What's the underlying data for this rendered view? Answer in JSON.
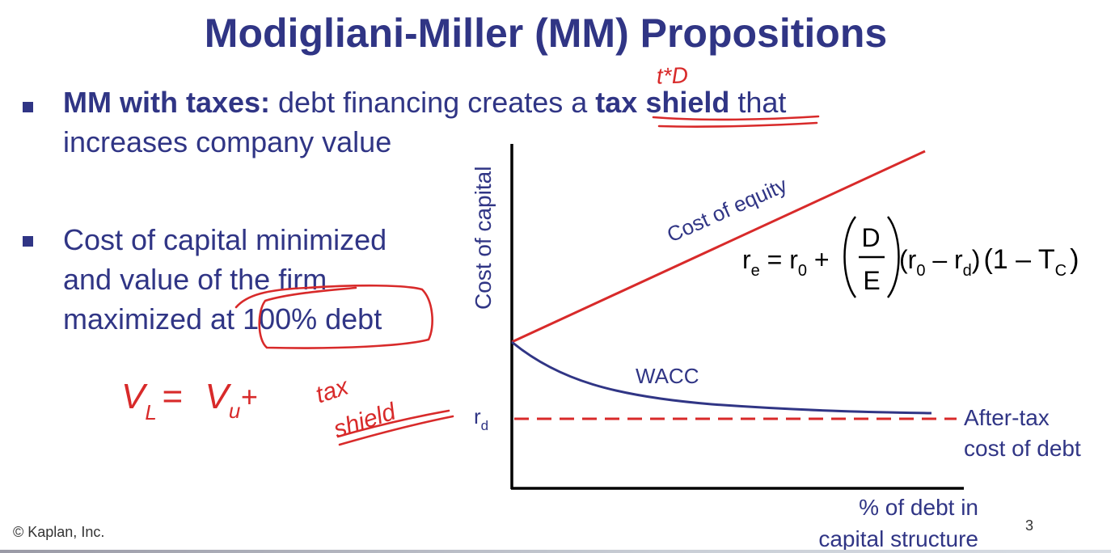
{
  "slide": {
    "title": "Modigliani-Miller (MM) Propositions",
    "bullet1": {
      "bold": "MM with taxes:",
      "text_before": " debt financing creates a ",
      "bold2": "tax shield",
      "text_after": " that",
      "line2": "increases company value"
    },
    "bullet2": {
      "line1": "Cost of capital minimized",
      "line2": "and value of the firm",
      "line3": "maximized at 100% debt"
    },
    "footer": "© Kaplan, Inc.",
    "page_number": "3"
  },
  "diagram": {
    "y_axis_label": "Cost of capital",
    "x_axis_label_line1": "% of debt in",
    "x_axis_label_line2": "capital structure",
    "cost_of_equity_label": "Cost of equity",
    "wacc_label": "WACC",
    "rd_label": "r",
    "rd_sub": "d",
    "after_tax_line1": "After-tax",
    "after_tax_line2": "cost of debt",
    "formula": {
      "re": "r",
      "re_sub": "e",
      "eq": " = r",
      "r0_sub": "0",
      "plus": " +",
      "D": "D",
      "E": "E",
      "paren2_open": "(r",
      "r0_sub_b": "0",
      "minus": " – r",
      "rd_sub": "d",
      "paren2_close": ")",
      "tax_open": "(1 – T",
      "tc_sub": "C",
      "tax_close": ")"
    }
  },
  "annotations": {
    "above_tax_shield": "t*D",
    "equation_left": "V",
    "equation_left_sub": "L",
    "equation_eq": "=",
    "equation_vu": "V",
    "equation_vu_sub": "u",
    "equation_plus": "+",
    "equation_tax": "tax",
    "equation_shield": "shield"
  },
  "colors": {
    "navy": "#303585",
    "red": "#d82a2a",
    "black": "#000000"
  }
}
